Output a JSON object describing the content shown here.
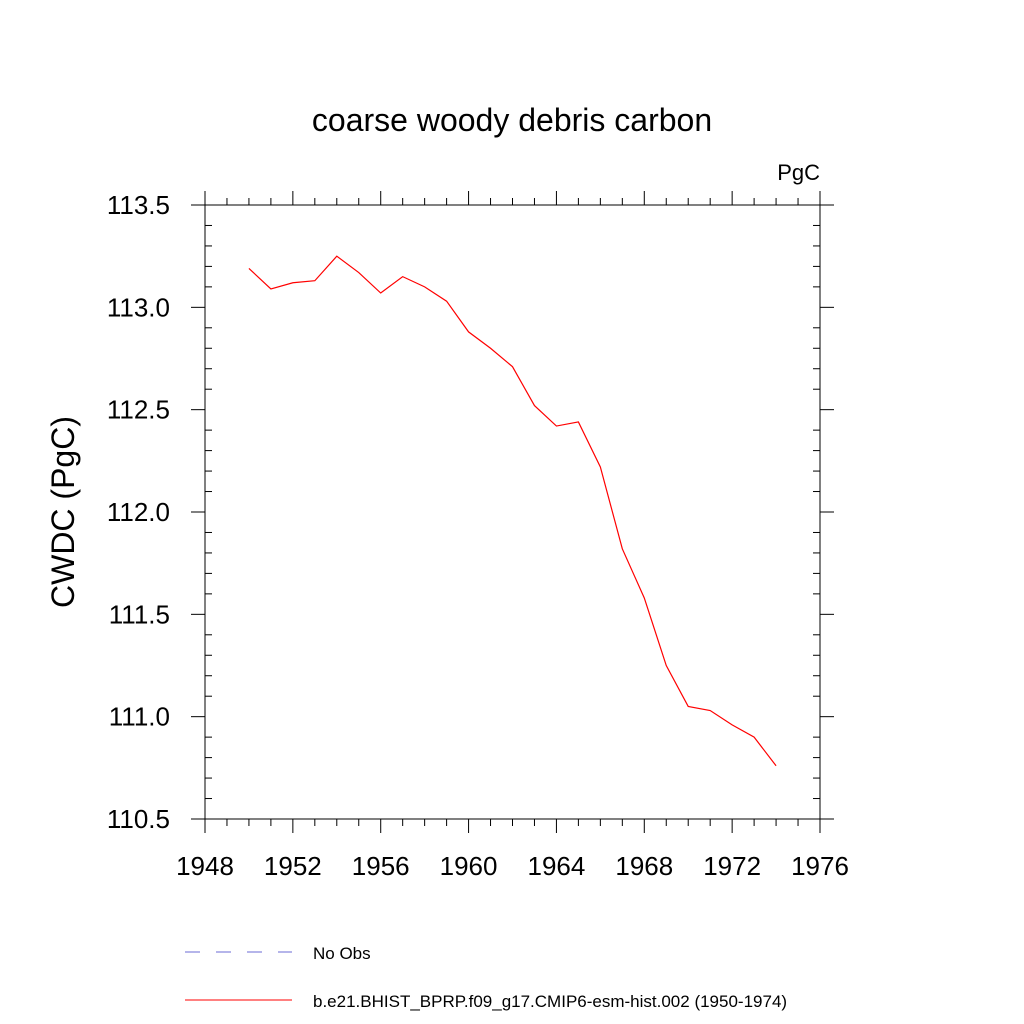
{
  "chart_data": {
    "type": "line",
    "title": "coarse woody debris carbon",
    "units": "PgC",
    "ylabel": "CWDC  (PgC)",
    "xlabel": "",
    "xlim": [
      1948,
      1976
    ],
    "ylim": [
      110.5,
      113.5
    ],
    "x_ticks": [
      "1948",
      "1952",
      "1956",
      "1960",
      "1964",
      "1968",
      "1972",
      "1976"
    ],
    "y_ticks": [
      "110.5",
      "111.0",
      "111.5",
      "112.0",
      "112.5",
      "113.0",
      "113.5"
    ],
    "grid": false,
    "legend_position": "bottom",
    "series": [
      {
        "name": "b.e21.BHIST_BPRP.f09_g17.CMIP6-esm-hist.002 (1950-1974)",
        "color": "#ff0000",
        "style": "solid",
        "x": [
          1950,
          1951,
          1952,
          1953,
          1954,
          1955,
          1956,
          1957,
          1958,
          1959,
          1960,
          1961,
          1962,
          1963,
          1964,
          1965,
          1966,
          1967,
          1968,
          1969,
          1970,
          1971,
          1972,
          1973,
          1974
        ],
        "values": [
          113.19,
          113.09,
          113.12,
          113.13,
          113.25,
          113.17,
          113.07,
          113.15,
          113.1,
          113.03,
          112.88,
          112.8,
          112.71,
          112.52,
          112.42,
          112.44,
          112.22,
          111.82,
          111.58,
          111.25,
          111.05,
          111.03,
          110.96,
          110.9,
          110.76
        ]
      }
    ],
    "legend": [
      {
        "label": "No Obs",
        "color": "#6b6bd6",
        "style": "dashed"
      },
      {
        "label": "b.e21.BHIST_BPRP.f09_g17.CMIP6-esm-hist.002 (1950-1974)",
        "color": "#ff0000",
        "style": "solid"
      }
    ]
  }
}
